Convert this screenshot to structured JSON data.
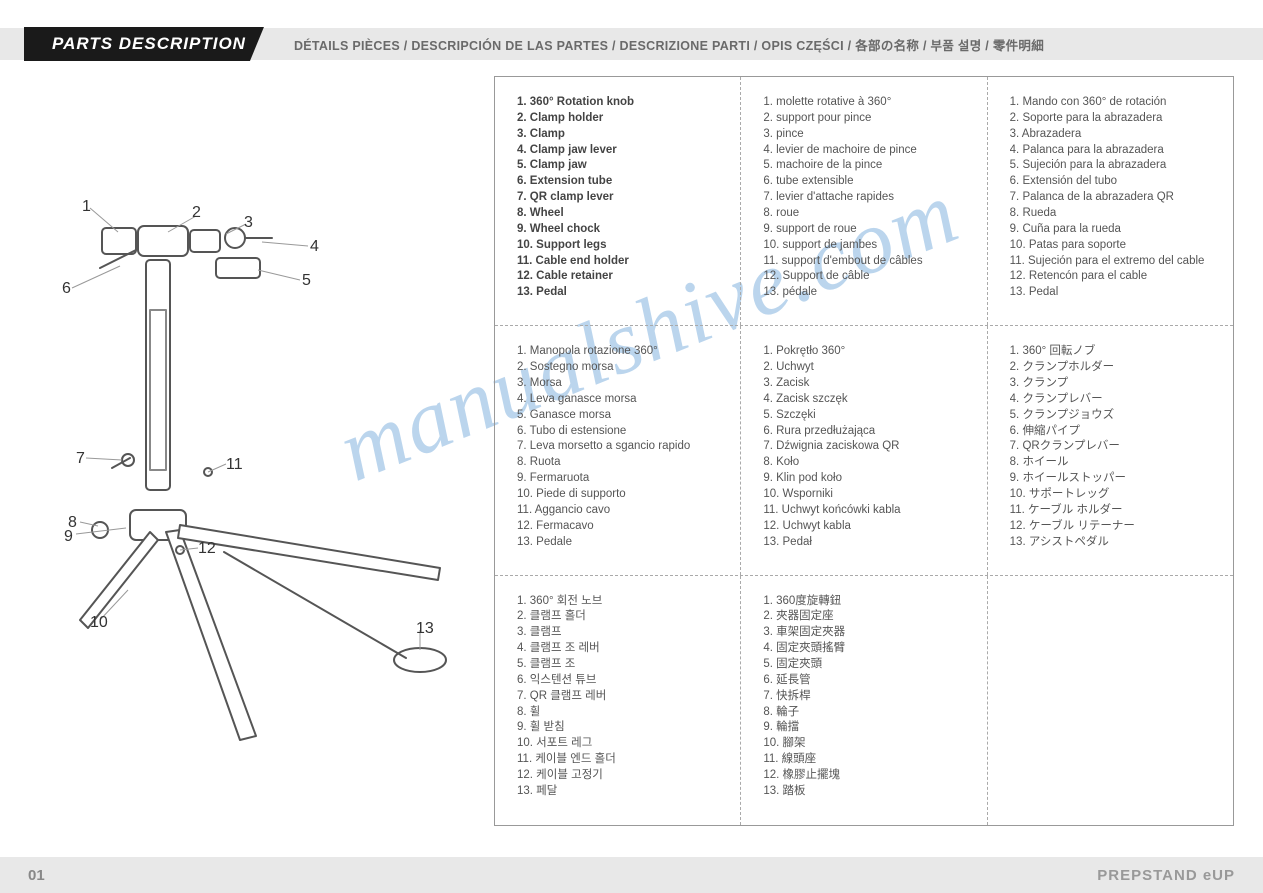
{
  "header": {
    "title": "PARTS DESCRIPTION",
    "subtitle": "DÉTAILS PIÈCES / DESCRIPCIÓN DE LAS PARTES / DESCRIZIONE PARTI / OPIS CZĘŚCI / 各部の名称 / 부품 설명 / 零件明細"
  },
  "footer": {
    "page": "01",
    "product": "PREPSTAND eUP"
  },
  "watermark": "manualshive.com",
  "diagram_labels": [
    "1",
    "2",
    "3",
    "4",
    "5",
    "6",
    "7",
    "8",
    "9",
    "10",
    "11",
    "12",
    "13"
  ],
  "langs": {
    "en": {
      "bold": true,
      "items": [
        "360° Rotation knob",
        "Clamp holder",
        "Clamp",
        "Clamp jaw lever",
        "Clamp jaw",
        "Extension tube",
        "QR clamp lever",
        "Wheel",
        "Wheel chock",
        "Support legs",
        "Cable end holder",
        "Cable retainer",
        "Pedal"
      ]
    },
    "fr": {
      "bold": false,
      "items": [
        "molette rotative à 360°",
        "support pour pince",
        "pince",
        "levier de machoire de pince",
        "machoire de la pince",
        "tube extensible",
        "levier d'attache rapides",
        "roue",
        "support de roue",
        "support de jambes",
        "support d'embout de câbles",
        "Support de câble",
        "pédale"
      ]
    },
    "es": {
      "bold": false,
      "items": [
        "Mando con 360° de rotación",
        "Soporte para la abrazadera",
        "Abrazadera",
        "Palanca para la abrazadera",
        "Sujeción para la abrazadera",
        "Extensión del tubo",
        "Palanca de la abrazadera QR",
        "Rueda",
        "Cuña para la rueda",
        "Patas para soporte",
        "Sujeción para el extremo del cable",
        "Retencón para el cable",
        "Pedal"
      ]
    },
    "it": {
      "bold": false,
      "items": [
        "Manopola rotazione 360°",
        "Sostegno morsa",
        "Morsa",
        "Leva ganasce morsa",
        "Ganasce morsa",
        "Tubo di estensione",
        "Leva morsetto a sgancio rapido",
        "Ruota",
        "Fermaruota",
        "Piede di supporto",
        "Aggancio cavo",
        "Fermacavo",
        "Pedale"
      ]
    },
    "pl": {
      "bold": false,
      "items": [
        "Pokrętło 360°",
        "Uchwyt",
        "Zacisk",
        "Zacisk szczęk",
        "Szczęki",
        "Rura przedłużająca",
        "Dźwignia zaciskowa QR",
        "Koło",
        "Klin pod koło",
        "Wsporniki",
        "Uchwyt końcówki kabla",
        "Uchwyt kabla",
        "Pedał"
      ]
    },
    "ja": {
      "bold": false,
      "items": [
        "360° 回転ノブ",
        "クランプホルダー",
        "クランプ",
        "クランプレバー",
        "クランプジョウズ",
        "伸縮パイプ",
        "QRクランプレバー",
        "ホイール",
        "ホイールストッパー",
        "サポートレッグ",
        "ケーブル ホルダー",
        "ケーブル リテーナー",
        "アシストペダル"
      ]
    },
    "ko": {
      "bold": false,
      "items": [
        "360° 회전 노브",
        "클램프 홀더",
        "클램프",
        "클램프 조 레버",
        "클램프 조",
        "익스텐션 튜브",
        "QR 클램프 레버",
        "휠",
        "휠 받침",
        "서포트 레그",
        "케이블 엔드 홀더",
        "케이블 고정기",
        "페달"
      ]
    },
    "zh": {
      "bold": false,
      "items": [
        "360度旋轉鈕",
        "夾器固定座",
        "車架固定夾器",
        "固定夾頭搖臂",
        "固定夾頭",
        "延長管",
        "快拆桿",
        "輪子",
        "輪擋",
        "腳架",
        "線頭座",
        "橡膠止擺塊",
        "踏板"
      ]
    }
  },
  "grid": [
    [
      "en",
      "fr",
      "es"
    ],
    [
      "it",
      "pl",
      "ja"
    ],
    [
      "ko",
      "zh",
      null
    ]
  ],
  "colors": {
    "header_bg": "#e8e8e8",
    "title_bg": "#1a1a1a",
    "title_fg": "#ffffff",
    "subtitle_fg": "#6a6a6a",
    "border": "#999999",
    "dash": "#aaaaaa",
    "text": "#555555",
    "watermark": "#9fc4e6"
  }
}
